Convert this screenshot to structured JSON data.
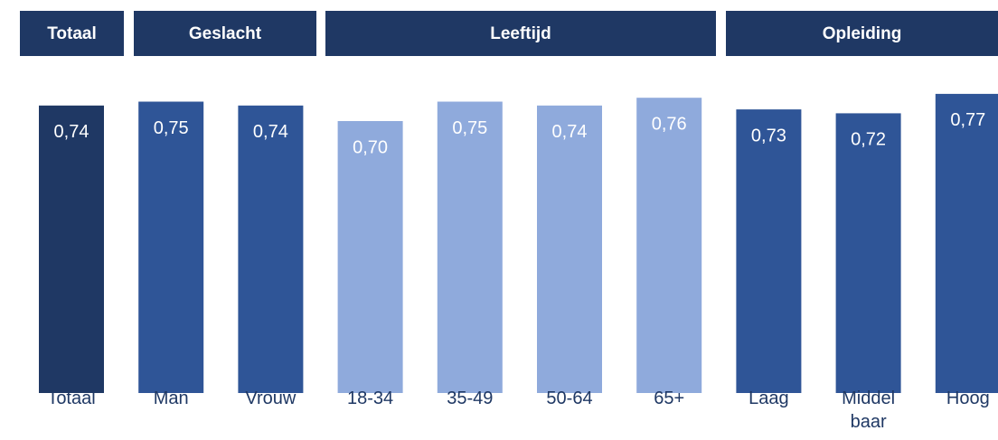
{
  "headers": [
    "Totaal",
    "Geslacht",
    "Leeftijd",
    "Opleiding"
  ],
  "chart_data": {
    "type": "bar",
    "categories": [
      "Totaal",
      "Man",
      "Vrouw",
      "18-34",
      "35-49",
      "50-64",
      "65+",
      "Laag",
      "Middel baar",
      "Hoog"
    ],
    "values": [
      0.74,
      0.75,
      0.74,
      0.7,
      0.75,
      0.74,
      0.76,
      0.73,
      0.72,
      0.77
    ],
    "value_labels": [
      "0,74",
      "0,75",
      "0,74",
      "0,70",
      "0,75",
      "0,74",
      "0,76",
      "0,73",
      "0,72",
      "0,77"
    ],
    "colors": [
      "#1f3864",
      "#2f5597",
      "#2f5597",
      "#8faadc",
      "#8faadc",
      "#8faadc",
      "#8faadc",
      "#2f5597",
      "#2f5597",
      "#2f5597"
    ],
    "ylim": [
      0,
      0.8
    ]
  }
}
